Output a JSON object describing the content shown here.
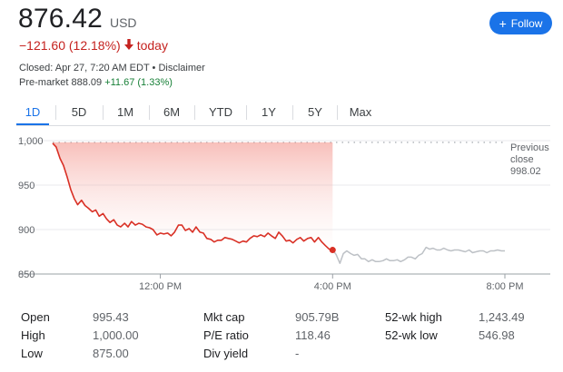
{
  "quote": {
    "price": "876.42",
    "currency": "USD",
    "change": "−121.60 (12.18%)",
    "change_period": "today",
    "closed_text": "Closed: Apr 27, 7:20 AM EDT",
    "disclaimer": "Disclaimer",
    "premarket_label": "Pre-market",
    "premarket_price": "888.09",
    "premarket_change": "+11.67 (1.33%)"
  },
  "follow_button": {
    "label": "Follow"
  },
  "tabs": [
    "1D",
    "5D",
    "1M",
    "6M",
    "YTD",
    "1Y",
    "5Y",
    "Max"
  ],
  "active_tab": "1D",
  "colors": {
    "down": "#d93025",
    "after_hours": "#bdc1c6",
    "accent": "#1a73e8",
    "up": "#188038"
  },
  "chart_data": {
    "type": "line",
    "title": "",
    "xlabel": "",
    "ylabel": "",
    "ylim": [
      850,
      1000
    ],
    "y_ticks": [
      "1,000",
      "950",
      "900",
      "850"
    ],
    "y_tick_values": [
      1000,
      950,
      900,
      850
    ],
    "x_ticks": [
      "12:00 PM",
      "4:00 PM",
      "8:00 PM"
    ],
    "x_tick_hours": [
      12,
      16,
      20
    ],
    "xlim_hours": [
      9.5,
      20
    ],
    "reference_line": {
      "label_line1": "Previous",
      "label_line2": "close",
      "value_label": "998.02",
      "value": 998.02
    },
    "series": [
      {
        "session": "regular",
        "points": [
          [
            9.5,
            997
          ],
          [
            9.58,
            993
          ],
          [
            9.67,
            980
          ],
          [
            9.75,
            972
          ],
          [
            9.83,
            960
          ],
          [
            9.92,
            945
          ],
          [
            10.0,
            935
          ],
          [
            10.08,
            928
          ],
          [
            10.17,
            933
          ],
          [
            10.25,
            927
          ],
          [
            10.33,
            924
          ],
          [
            10.42,
            920
          ],
          [
            10.5,
            922
          ],
          [
            10.58,
            915
          ],
          [
            10.67,
            918
          ],
          [
            10.75,
            912
          ],
          [
            10.83,
            908
          ],
          [
            10.92,
            911
          ],
          [
            11.0,
            905
          ],
          [
            11.08,
            903
          ],
          [
            11.17,
            907
          ],
          [
            11.25,
            903
          ],
          [
            11.33,
            909
          ],
          [
            11.42,
            905
          ],
          [
            11.5,
            907
          ],
          [
            11.58,
            906
          ],
          [
            11.67,
            903
          ],
          [
            11.75,
            902
          ],
          [
            11.83,
            900
          ],
          [
            11.92,
            894
          ],
          [
            12.0,
            896
          ],
          [
            12.08,
            895
          ],
          [
            12.17,
            896
          ],
          [
            12.25,
            893
          ],
          [
            12.33,
            897
          ],
          [
            12.42,
            905
          ],
          [
            12.5,
            905
          ],
          [
            12.58,
            899
          ],
          [
            12.67,
            901
          ],
          [
            12.75,
            897
          ],
          [
            12.83,
            903
          ],
          [
            12.92,
            897
          ],
          [
            13.0,
            896
          ],
          [
            13.08,
            890
          ],
          [
            13.17,
            889
          ],
          [
            13.25,
            886
          ],
          [
            13.33,
            888
          ],
          [
            13.42,
            888
          ],
          [
            13.5,
            891
          ],
          [
            13.58,
            890
          ],
          [
            13.67,
            889
          ],
          [
            13.75,
            887
          ],
          [
            13.83,
            885
          ],
          [
            13.92,
            887
          ],
          [
            14.0,
            886
          ],
          [
            14.08,
            890
          ],
          [
            14.17,
            893
          ],
          [
            14.25,
            892
          ],
          [
            14.33,
            894
          ],
          [
            14.42,
            892
          ],
          [
            14.5,
            896
          ],
          [
            14.58,
            893
          ],
          [
            14.67,
            890
          ],
          [
            14.75,
            897
          ],
          [
            14.83,
            893
          ],
          [
            14.92,
            887
          ],
          [
            15.0,
            888
          ],
          [
            15.08,
            885
          ],
          [
            15.17,
            889
          ],
          [
            15.25,
            891
          ],
          [
            15.33,
            887
          ],
          [
            15.42,
            890
          ],
          [
            15.5,
            891
          ],
          [
            15.58,
            886
          ],
          [
            15.67,
            891
          ],
          [
            15.75,
            886
          ],
          [
            15.83,
            882
          ],
          [
            15.92,
            878
          ],
          [
            16.0,
            877
          ]
        ]
      },
      {
        "session": "after_hours",
        "points": [
          [
            16.0,
            877
          ],
          [
            16.08,
            872
          ],
          [
            16.17,
            862
          ],
          [
            16.25,
            873
          ],
          [
            16.33,
            876
          ],
          [
            16.42,
            873
          ],
          [
            16.5,
            871
          ],
          [
            16.58,
            872
          ],
          [
            16.67,
            867
          ],
          [
            16.75,
            867
          ],
          [
            16.83,
            864
          ],
          [
            16.92,
            866
          ],
          [
            17.0,
            864
          ],
          [
            17.08,
            864
          ],
          [
            17.17,
            865
          ],
          [
            17.25,
            867
          ],
          [
            17.33,
            865
          ],
          [
            17.42,
            865
          ],
          [
            17.5,
            866
          ],
          [
            17.58,
            864
          ],
          [
            17.67,
            866
          ],
          [
            17.75,
            869
          ],
          [
            17.83,
            869
          ],
          [
            17.92,
            867
          ],
          [
            18.0,
            871
          ],
          [
            18.08,
            873
          ],
          [
            18.17,
            880
          ],
          [
            18.25,
            878
          ],
          [
            18.33,
            879
          ],
          [
            18.42,
            877
          ],
          [
            18.5,
            877
          ],
          [
            18.58,
            879
          ],
          [
            18.67,
            877
          ],
          [
            18.75,
            876
          ],
          [
            18.83,
            877
          ],
          [
            18.92,
            877
          ],
          [
            19.0,
            876
          ],
          [
            19.08,
            875
          ],
          [
            19.17,
            877
          ],
          [
            19.25,
            874
          ],
          [
            19.33,
            875
          ],
          [
            19.42,
            876
          ],
          [
            19.5,
            876
          ],
          [
            19.58,
            874
          ],
          [
            19.67,
            876
          ],
          [
            19.75,
            876
          ],
          [
            19.83,
            877
          ],
          [
            19.92,
            876
          ],
          [
            20.0,
            876
          ]
        ]
      }
    ],
    "close_marker": [
      16.0,
      877
    ]
  },
  "stats": {
    "col1": [
      {
        "label": "Open",
        "value": "995.43"
      },
      {
        "label": "High",
        "value": "1,000.00"
      },
      {
        "label": "Low",
        "value": "875.00"
      }
    ],
    "col2": [
      {
        "label": "Mkt cap",
        "value": "905.79B"
      },
      {
        "label": "P/E ratio",
        "value": "118.46"
      },
      {
        "label": "Div yield",
        "value": "-"
      }
    ],
    "col3": [
      {
        "label": "52-wk high",
        "value": "1,243.49"
      },
      {
        "label": "52-wk low",
        "value": "546.98"
      }
    ]
  }
}
